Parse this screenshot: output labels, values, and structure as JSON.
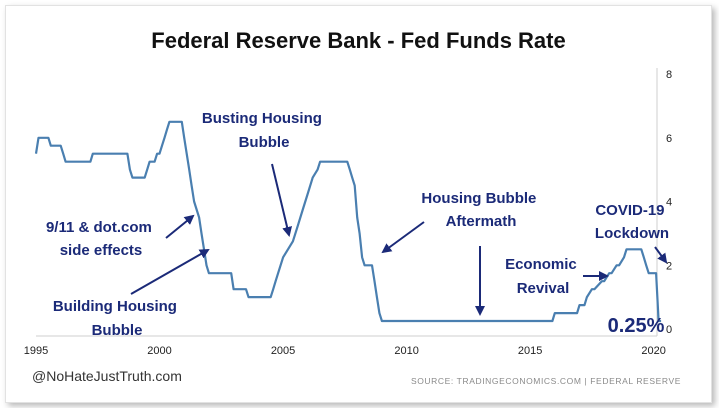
{
  "header": {
    "title": "Federal Reserve Bank - Fed Funds Rate"
  },
  "footer": {
    "handle": "@NoHateJustTruth.com",
    "source": "SOURCE: TRADINGECONOMICS.COM | FEDERAL RESERVE"
  },
  "chart_data": {
    "type": "line",
    "title": "Federal Reserve Bank - Fed Funds Rate",
    "xlabel": "",
    "ylabel": "",
    "xlim": [
      1995.0,
      2020.5
    ],
    "ylim": [
      0,
      8
    ],
    "grid": false,
    "line_color": "#4a7fb0",
    "annotation_color": "#1b2a78",
    "x_ticks": [
      "1995",
      "2000",
      "2005",
      "2010",
      "2015",
      "2020"
    ],
    "y_ticks": [
      "0",
      "2",
      "4",
      "6",
      "8"
    ],
    "series": [
      {
        "x": [
          1995.0,
          1995.1,
          1995.5,
          1995.6,
          1996.0,
          1996.1,
          1996.2,
          1997.2,
          1997.3,
          1998.7,
          1998.8,
          1998.9,
          1999.0,
          1999.4,
          1999.5,
          1999.6,
          1999.8,
          1999.9,
          2000.0,
          2000.1,
          2000.2,
          2000.3,
          2000.4,
          2000.5,
          2000.9,
          2001.0,
          2001.1,
          2001.2,
          2001.3,
          2001.4,
          2001.5,
          2001.6,
          2001.7,
          2001.8,
          2001.9,
          2002.0,
          2002.9,
          2003.0,
          2003.5,
          2003.6,
          2004.5,
          2004.6,
          2004.7,
          2004.8,
          2005.0,
          2005.2,
          2005.4,
          2005.6,
          2005.8,
          2006.0,
          2006.2,
          2006.4,
          2006.5,
          2007.6,
          2007.7,
          2007.8,
          2007.9,
          2008.0,
          2008.1,
          2008.2,
          2008.3,
          2008.6,
          2008.7,
          2008.8,
          2008.9,
          2009.0,
          2015.9,
          2016.0,
          2016.9,
          2017.0,
          2017.2,
          2017.3,
          2017.5,
          2017.6,
          2017.9,
          2018.0,
          2018.2,
          2018.3,
          2018.5,
          2018.6,
          2018.8,
          2018.9,
          2019.5,
          2019.6,
          2019.7,
          2019.8,
          2020.1,
          2020.2,
          2020.3
        ],
        "y": [
          5.5,
          6.0,
          6.0,
          5.75,
          5.75,
          5.5,
          5.25,
          5.25,
          5.5,
          5.5,
          5.0,
          4.75,
          4.75,
          4.75,
          5.0,
          5.25,
          5.25,
          5.5,
          5.5,
          5.75,
          6.0,
          6.25,
          6.5,
          6.5,
          6.5,
          6.0,
          5.5,
          5.0,
          4.5,
          4.0,
          3.75,
          3.5,
          3.0,
          2.5,
          2.0,
          1.75,
          1.75,
          1.25,
          1.25,
          1.0,
          1.0,
          1.25,
          1.5,
          1.75,
          2.25,
          2.5,
          2.75,
          3.25,
          3.75,
          4.25,
          4.75,
          5.0,
          5.25,
          5.25,
          5.0,
          4.75,
          4.5,
          3.5,
          3.0,
          2.25,
          2.0,
          2.0,
          1.5,
          1.0,
          0.5,
          0.25,
          0.25,
          0.5,
          0.5,
          0.75,
          0.75,
          1.0,
          1.25,
          1.25,
          1.5,
          1.5,
          1.75,
          1.75,
          2.0,
          2.0,
          2.25,
          2.5,
          2.5,
          2.25,
          2.0,
          1.75,
          1.75,
          0.25,
          0.25
        ]
      }
    ],
    "annotations": [
      {
        "lines": [
          "Busting Housing",
          "Bubble"
        ]
      },
      {
        "lines": [
          "9/11 & dot.com",
          "side effects"
        ]
      },
      {
        "lines": [
          "Building Housing",
          "Bubble"
        ]
      },
      {
        "lines": [
          "Housing Bubble",
          "Aftermath"
        ]
      },
      {
        "lines": [
          "Economic",
          "Revival"
        ]
      },
      {
        "lines": [
          "COVID-19",
          "Lockdown"
        ]
      },
      {
        "lines": [
          "0.25%"
        ]
      }
    ]
  }
}
